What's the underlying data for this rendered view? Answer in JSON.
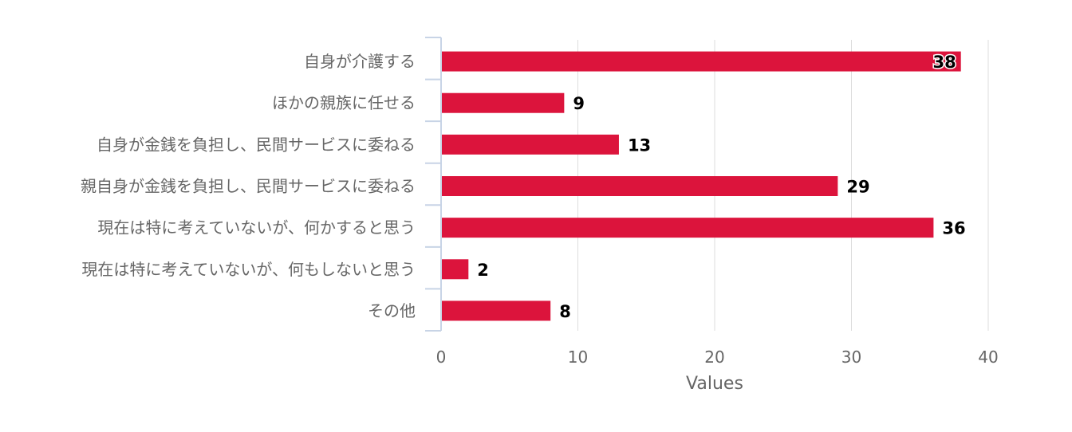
{
  "chart_data": {
    "type": "bar",
    "orientation": "horizontal",
    "categories": [
      "自身が介護する",
      "ほかの親族に任せる",
      "自身が金銭を負担し、民間サービスに委ねる",
      "親自身が金銭を負担し、民間サービスに委ねる",
      "現在は特に考えていないが、何かすると思う",
      "現在は特に考えていないが、何もしないと思う",
      "その他"
    ],
    "values": [
      38,
      9,
      13,
      29,
      36,
      2,
      8
    ],
    "xlabel": "Values",
    "ylabel": "",
    "xlim": [
      0,
      40
    ],
    "xticks": [
      0,
      10,
      20,
      30,
      40
    ],
    "grid": true,
    "data_labels": true,
    "bar_color": "#dc143c",
    "grid_color": "#dddddd",
    "axis_color": "#c8d4e6"
  }
}
